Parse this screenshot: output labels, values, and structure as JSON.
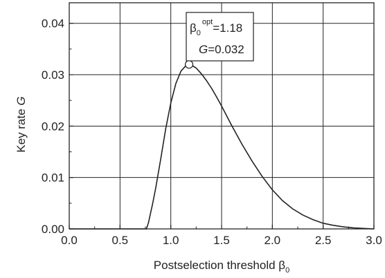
{
  "chart_data": {
    "type": "line",
    "xlabel": "Postselection threshold β",
    "xlabel_sub": "0",
    "ylabel_prefix": "Key rate ",
    "ylabel_var": "G",
    "xlim": [
      0.0,
      3.0
    ],
    "ylim": [
      0.0,
      0.044
    ],
    "xticks": [
      0.0,
      0.5,
      1.0,
      1.5,
      2.0,
      2.5,
      3.0
    ],
    "xtick_labels": [
      "0.0",
      "0.5",
      "1.0",
      "1.5",
      "2.0",
      "2.5",
      "3.0"
    ],
    "yticks": [
      0.0,
      0.01,
      0.02,
      0.03,
      0.04
    ],
    "ytick_labels": [
      "0.00",
      "0.01",
      "0.02",
      "0.03",
      "0.04"
    ],
    "grid": true,
    "series": [
      {
        "x": [
          0.0,
          0.5,
          0.76,
          0.78,
          0.82,
          0.85,
          0.9,
          0.95,
          1.0,
          1.05,
          1.1,
          1.15,
          1.18,
          1.2,
          1.25,
          1.3,
          1.35,
          1.4,
          1.45,
          1.5,
          1.6,
          1.7,
          1.8,
          1.9,
          2.0,
          2.1,
          2.2,
          2.3,
          2.4,
          2.5,
          2.6,
          2.7,
          2.8,
          2.9,
          3.0
        ],
        "y": [
          0.0,
          0.0,
          0.0,
          0.0012,
          0.0048,
          0.0078,
          0.0135,
          0.0195,
          0.0245,
          0.0283,
          0.0307,
          0.0318,
          0.032,
          0.0319,
          0.0313,
          0.0302,
          0.0289,
          0.0274,
          0.0257,
          0.0239,
          0.0201,
          0.0165,
          0.0132,
          0.0102,
          0.0076,
          0.0055,
          0.0039,
          0.0027,
          0.0018,
          0.0011,
          0.0007,
          0.0004,
          0.0002,
          0.0001,
          0.0
        ]
      }
    ],
    "optimum": {
      "x": 1.18,
      "y": 0.032
    },
    "annotation": {
      "line1_beta": "β",
      "line1_sub": "0",
      "line1_sup": "opt",
      "line1_value": "=1.18",
      "line2_var": "G",
      "line2_value": "=0.032"
    }
  }
}
